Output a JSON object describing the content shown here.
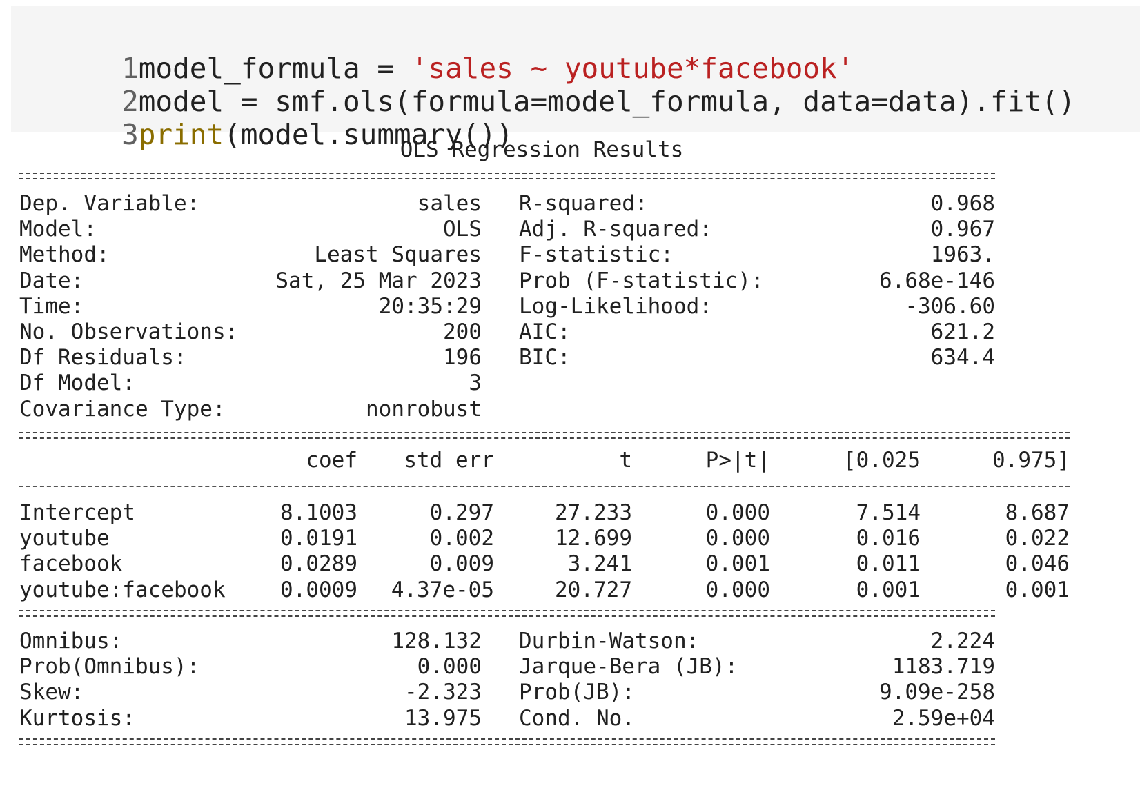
{
  "code": {
    "lines": [
      {
        "num": "1",
        "parts": [
          "model_formula = ",
          "'sales ~ youtube*facebook'",
          ""
        ]
      },
      {
        "num": "2",
        "parts": [
          "model = smf.ols(formula=model_formula, data=data).fit()",
          "",
          ""
        ]
      },
      {
        "num": "3",
        "parts": [
          "",
          "print",
          "(model.summary())"
        ]
      }
    ]
  },
  "summary": {
    "title": "OLS Regression Results",
    "top_left": [
      {
        "label": "Dep. Variable:",
        "value": "sales"
      },
      {
        "label": "Model:",
        "value": "OLS"
      },
      {
        "label": "Method:",
        "value": "Least Squares"
      },
      {
        "label": "Date:",
        "value": "Sat, 25 Mar 2023"
      },
      {
        "label": "Time:",
        "value": "20:35:29"
      },
      {
        "label": "No. Observations:",
        "value": "200"
      },
      {
        "label": "Df Residuals:",
        "value": "196"
      },
      {
        "label": "Df Model:",
        "value": "3"
      },
      {
        "label": "Covariance Type:",
        "value": "nonrobust"
      }
    ],
    "top_right": [
      {
        "label": "R-squared:",
        "value": "0.968"
      },
      {
        "label": "Adj. R-squared:",
        "value": "0.967"
      },
      {
        "label": "F-statistic:",
        "value": "1963."
      },
      {
        "label": "Prob (F-statistic):",
        "value": "6.68e-146"
      },
      {
        "label": "Log-Likelihood:",
        "value": "-306.60"
      },
      {
        "label": "AIC:",
        "value": "621.2"
      },
      {
        "label": "BIC:",
        "value": "634.4"
      }
    ],
    "coef_headers": [
      "coef",
      "std err",
      "t",
      "P>|t|",
      "[0.025",
      "0.975]"
    ],
    "coef_rows": [
      {
        "name": "Intercept",
        "values": [
          "8.1003",
          "0.297",
          "27.233",
          "0.000",
          "7.514",
          "8.687"
        ]
      },
      {
        "name": "youtube",
        "values": [
          "0.0191",
          "0.002",
          "12.699",
          "0.000",
          "0.016",
          "0.022"
        ]
      },
      {
        "name": "facebook",
        "values": [
          "0.0289",
          "0.009",
          "3.241",
          "0.001",
          "0.011",
          "0.046"
        ]
      },
      {
        "name": "youtube:facebook",
        "values": [
          "0.0009",
          "4.37e-05",
          "20.727",
          "0.000",
          "0.001",
          "0.001"
        ]
      }
    ],
    "bottom_left": [
      {
        "label": "Omnibus:",
        "value": "128.132"
      },
      {
        "label": "Prob(Omnibus):",
        "value": "0.000"
      },
      {
        "label": "Skew:",
        "value": "-2.323"
      },
      {
        "label": "Kurtosis:",
        "value": "13.975"
      }
    ],
    "bottom_right": [
      {
        "label": "Durbin-Watson:",
        "value": "2.224"
      },
      {
        "label": "Jarque-Bera (JB):",
        "value": "1183.719"
      },
      {
        "label": "Prob(JB):",
        "value": "9.09e-258"
      },
      {
        "label": "Cond. No.",
        "value": "2.59e+04"
      }
    ]
  }
}
